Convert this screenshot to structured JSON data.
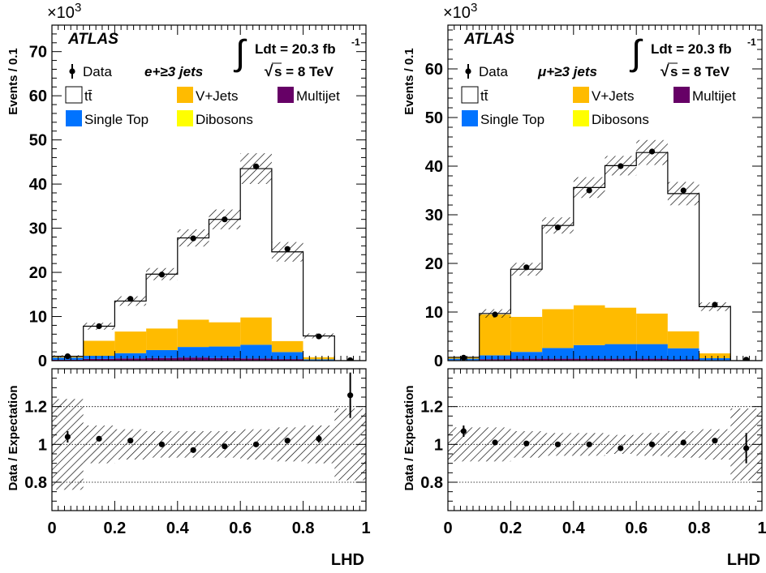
{
  "chart_data": [
    {
      "type": "bar",
      "panel": "left",
      "channel_label": "e+≥3 jets",
      "experiment": "ATLAS",
      "lumi_label": "Ldt = 20.3 fb",
      "lumi_exponent": "-1",
      "energy_label": "s = 8 TeV",
      "y_multiplier": "×10",
      "y_multiplier_exp": "3",
      "ylabel": "Events / 0.1",
      "xlabel": "LHD",
      "ratio_ylabel": "Data / Expectation",
      "ylim": [
        0,
        76
      ],
      "xlim": [
        0,
        1
      ],
      "ratio_ylim": [
        0.65,
        1.4
      ],
      "y_ticks": [
        "0",
        "10",
        "20",
        "30",
        "40",
        "50",
        "60",
        "70"
      ],
      "y_tick_values": [
        0,
        10,
        20,
        30,
        40,
        50,
        60,
        70
      ],
      "x_ticks": [
        "0",
        "0.2",
        "0.4",
        "0.6",
        "0.8",
        "1"
      ],
      "x_tick_values": [
        0,
        0.2,
        0.4,
        0.6,
        0.8,
        1
      ],
      "ratio_ticks": [
        "0.8",
        "1",
        "1.2"
      ],
      "ratio_tick_values": [
        0.8,
        1.0,
        1.2
      ],
      "bin_edges": [
        0,
        0.1,
        0.2,
        0.3,
        0.4,
        0.5,
        0.6,
        0.7,
        0.8,
        0.9,
        1.0
      ],
      "series": [
        {
          "name": "Dibosons",
          "color": "#ffff00",
          "values": [
            0.05,
            0.1,
            0.1,
            0.1,
            0.1,
            0.1,
            0.1,
            0.05,
            0.05,
            0.0
          ]
        },
        {
          "name": "Multijet",
          "color": "#660066",
          "values": [
            0.15,
            0.3,
            0.4,
            0.5,
            0.6,
            0.5,
            0.4,
            0.3,
            0.05,
            0.0
          ]
        },
        {
          "name": "Single Top",
          "color": "#0073ff",
          "values": [
            0.5,
            0.7,
            1.2,
            1.8,
            2.4,
            2.6,
            3.1,
            1.6,
            0.2,
            0.0
          ]
        },
        {
          "name": "V+Jets",
          "color": "#ffbb00",
          "values": [
            0.3,
            3.4,
            4.9,
            4.9,
            6.2,
            5.5,
            6.2,
            2.5,
            0.5,
            0.0
          ]
        },
        {
          "name": "tt̄",
          "color": "#ffffff",
          "values": [
            0.0,
            3.3,
            6.9,
            12.3,
            18.5,
            23.3,
            33.7,
            20.2,
            4.8,
            0.0
          ]
        }
      ],
      "data": {
        "name": "Data",
        "values": [
          1.0,
          7.8,
          14.0,
          19.5,
          27.7,
          32.0,
          44.0,
          25.3,
          5.5,
          0.1
        ],
        "errors": [
          0.1,
          0.2,
          0.2,
          0.3,
          0.3,
          0.3,
          0.4,
          0.3,
          0.15,
          0.05
        ]
      },
      "mc_uncertainty_fraction": [
        0.24,
        0.1,
        0.08,
        0.07,
        0.07,
        0.07,
        0.08,
        0.09,
        0.1,
        0.19
      ],
      "ratio": {
        "values": [
          1.04,
          1.03,
          1.02,
          1.0,
          0.97,
          0.99,
          1.0,
          1.02,
          1.03,
          1.26
        ],
        "errors": [
          0.03,
          0.01,
          0.01,
          0.01,
          0.01,
          0.01,
          0.01,
          0.01,
          0.02,
          0.12
        ]
      }
    },
    {
      "type": "bar",
      "panel": "right",
      "channel_label": "μ+≥3 jets",
      "experiment": "ATLAS",
      "lumi_label": "Ldt = 20.3 fb",
      "lumi_exponent": "-1",
      "energy_label": "s = 8 TeV",
      "y_multiplier": "×10",
      "y_multiplier_exp": "3",
      "ylabel": "Events / 0.1",
      "xlabel": "LHD",
      "ratio_ylabel": "Data / Expectation",
      "ylim": [
        0,
        69
      ],
      "xlim": [
        0,
        1
      ],
      "ratio_ylim": [
        0.65,
        1.4
      ],
      "y_ticks": [
        "0",
        "10",
        "20",
        "30",
        "40",
        "50",
        "60"
      ],
      "y_tick_values": [
        0,
        10,
        20,
        30,
        40,
        50,
        60
      ],
      "x_ticks": [
        "0",
        "0.2",
        "0.4",
        "0.6",
        "0.8",
        "1"
      ],
      "x_tick_values": [
        0,
        0.2,
        0.4,
        0.6,
        0.8,
        1
      ],
      "ratio_ticks": [
        "0.8",
        "1",
        "1.2"
      ],
      "ratio_tick_values": [
        0.8,
        1.0,
        1.2
      ],
      "bin_edges": [
        0,
        0.1,
        0.2,
        0.3,
        0.4,
        0.5,
        0.6,
        0.7,
        0.8,
        0.9,
        1.0
      ],
      "series": [
        {
          "name": "Dibosons",
          "color": "#ffff00",
          "values": [
            0.05,
            0.1,
            0.1,
            0.1,
            0.1,
            0.1,
            0.1,
            0.05,
            0.05,
            0.0
          ]
        },
        {
          "name": "Multijet",
          "color": "#660066",
          "values": [
            0.05,
            0.2,
            0.3,
            0.3,
            0.3,
            0.3,
            0.3,
            0.2,
            0.05,
            0.0
          ]
        },
        {
          "name": "Single Top",
          "color": "#0073ff",
          "values": [
            0.3,
            0.8,
            1.4,
            2.2,
            2.8,
            3.0,
            3.0,
            2.3,
            0.4,
            0.0
          ]
        },
        {
          "name": "V+Jets",
          "color": "#ffbb00",
          "values": [
            0.3,
            8.4,
            7.2,
            8.0,
            8.2,
            7.5,
            6.3,
            3.5,
            1.0,
            0.0
          ]
        },
        {
          "name": "tt̄",
          "color": "#ffffff",
          "values": [
            0.0,
            0.2,
            9.8,
            17.2,
            24.2,
            29.2,
            33.1,
            28.3,
            9.6,
            0.0
          ]
        }
      ],
      "data": {
        "name": "Data",
        "values": [
          0.6,
          9.5,
          19.2,
          27.4,
          35.0,
          40.0,
          43.0,
          35.0,
          11.5,
          0.2
        ],
        "errors": [
          0.1,
          0.2,
          0.3,
          0.3,
          0.3,
          0.3,
          0.4,
          0.3,
          0.2,
          0.05
        ]
      },
      "mc_uncertainty_fraction": [
        0.09,
        0.09,
        0.07,
        0.06,
        0.06,
        0.05,
        0.06,
        0.07,
        0.08,
        0.19
      ],
      "ratio": {
        "values": [
          1.07,
          1.01,
          1.005,
          1.0,
          1.0,
          0.98,
          1.0,
          1.01,
          1.02,
          0.98
        ],
        "errors": [
          0.03,
          0.01,
          0.01,
          0.01,
          0.01,
          0.01,
          0.01,
          0.01,
          0.01,
          0.08
        ]
      }
    }
  ]
}
